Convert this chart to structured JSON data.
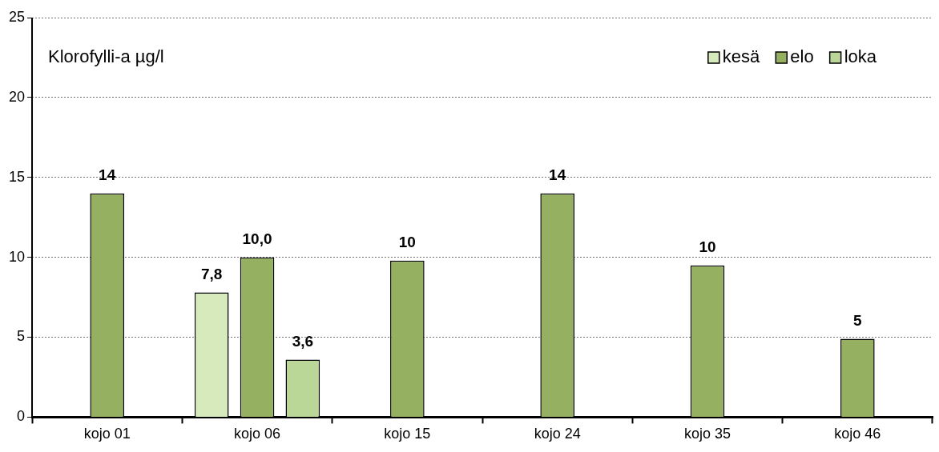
{
  "chart_data": {
    "type": "bar",
    "title": "Klorofylli-a µg/l",
    "categories": [
      "kojo 01",
      "kojo 06",
      "kojo 15",
      "kojo 24",
      "kojo 35",
      "kojo 46"
    ],
    "series": [
      {
        "name": "kesä",
        "color": "#d7eabc",
        "values": [
          null,
          7.8,
          null,
          null,
          null,
          null
        ],
        "value_labels": [
          null,
          "7,8",
          null,
          null,
          null,
          null
        ]
      },
      {
        "name": "elo",
        "color": "#94b060",
        "values": [
          14,
          10,
          9.8,
          14,
          9.5,
          4.9
        ],
        "value_labels": [
          "14",
          "10,0",
          "10",
          "14",
          "10",
          "5"
        ]
      },
      {
        "name": "loka",
        "color": "#bbd798",
        "values": [
          null,
          3.6,
          null,
          null,
          null,
          null
        ],
        "value_labels": [
          null,
          "3,6",
          null,
          null,
          null,
          null
        ]
      }
    ],
    "ylim": [
      0,
      25
    ],
    "yticks": [
      0,
      5,
      10,
      15,
      20,
      25
    ],
    "grid": "y",
    "legend": "top right"
  }
}
